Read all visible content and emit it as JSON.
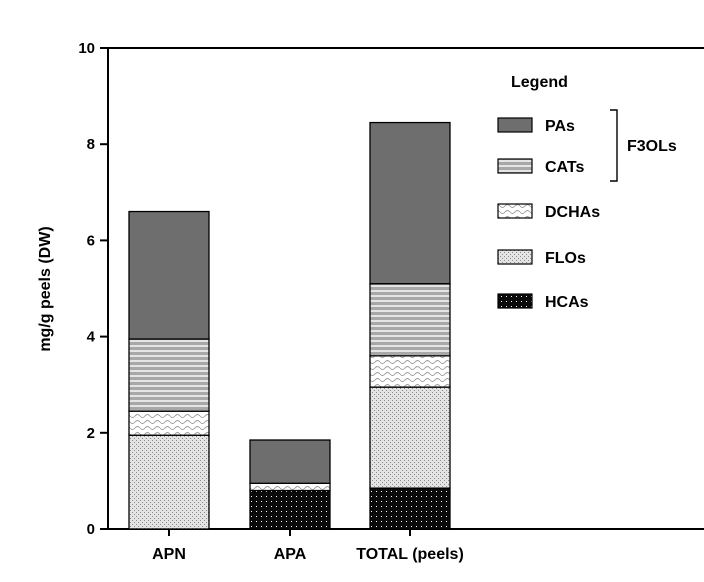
{
  "chart_data": {
    "type": "bar",
    "stacked": true,
    "categories": [
      "APN",
      "APA",
      "TOTAL (peels)"
    ],
    "ylabel": "mg/g peels (DW)",
    "ylim": [
      0,
      10
    ],
    "yticks": [
      0,
      2,
      4,
      6,
      8,
      10
    ],
    "series": [
      {
        "name": "HCAs",
        "values": [
          0,
          0.8,
          0.85
        ],
        "pattern": "dots-dark",
        "color": "#111111"
      },
      {
        "name": "FLOs",
        "values": [
          1.95,
          0,
          2.1
        ],
        "pattern": "speckle",
        "color": "#c8c8c8"
      },
      {
        "name": "DCHAs",
        "values": [
          0.5,
          0.15,
          0.65
        ],
        "pattern": "waves",
        "color": "#ffffff"
      },
      {
        "name": "CATs",
        "values": [
          1.5,
          0,
          1.5
        ],
        "pattern": "hlines",
        "color": "#9a9a9a"
      },
      {
        "name": "PAs",
        "values": [
          2.65,
          0.9,
          3.35
        ],
        "pattern": "solid",
        "color": "#6e6e6e"
      }
    ],
    "legend": {
      "title": "Legend",
      "placement": "right",
      "order": [
        "PAs",
        "CATs",
        "DCHAs",
        "FLOs",
        "HCAs"
      ],
      "group_label": "F3OLs",
      "group_members": [
        "PAs",
        "CATs"
      ]
    }
  }
}
